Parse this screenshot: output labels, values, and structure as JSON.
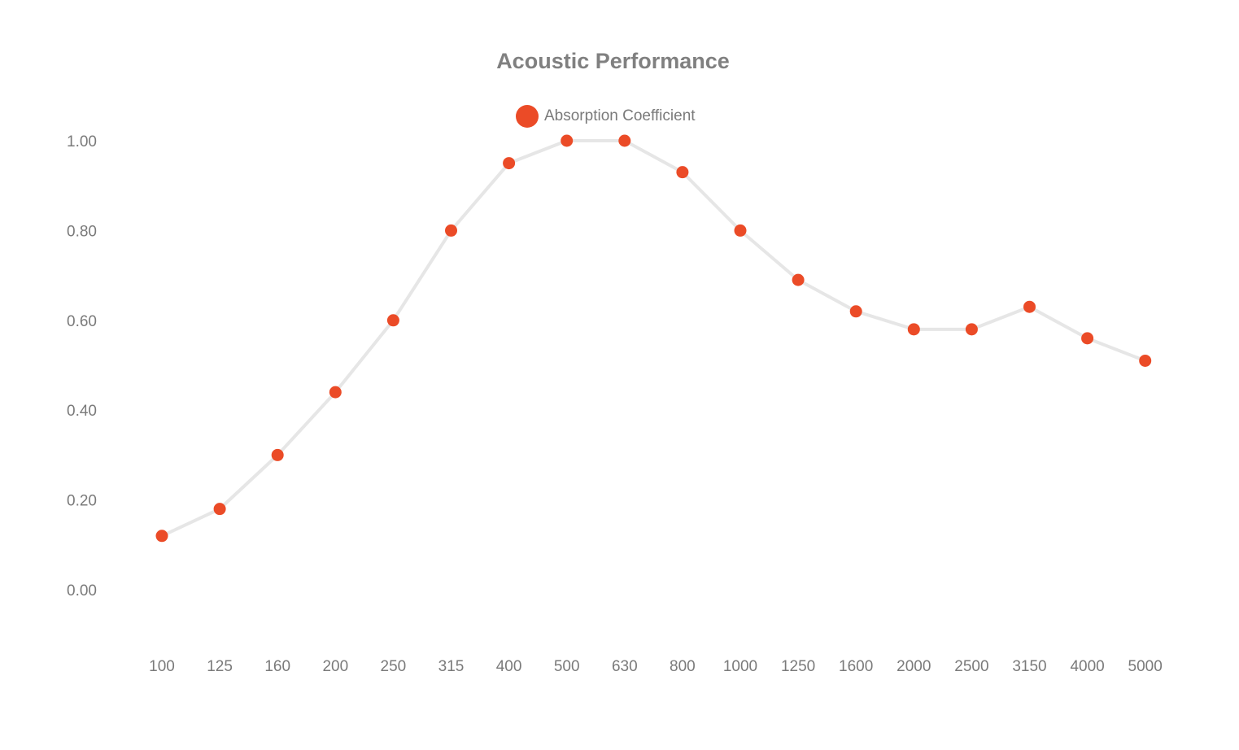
{
  "chart_data": {
    "type": "line",
    "title": "Acoustic Performance",
    "xlabel": "",
    "ylabel": "",
    "categories": [
      "100",
      "125",
      "160",
      "200",
      "250",
      "315",
      "400",
      "500",
      "630",
      "800",
      "1000",
      "1250",
      "1600",
      "2000",
      "2500",
      "3150",
      "4000",
      "5000"
    ],
    "series": [
      {
        "name": "Absorption Coefficient",
        "values": [
          0.12,
          0.18,
          0.3,
          0.44,
          0.6,
          0.8,
          0.95,
          1.0,
          1.0,
          0.93,
          0.8,
          0.69,
          0.62,
          0.58,
          0.58,
          0.63,
          0.56,
          0.51
        ],
        "point_color": "#eb4b27",
        "line_color": "#e6e6e6"
      }
    ],
    "y_ticks": [
      "0.00",
      "0.20",
      "0.40",
      "0.60",
      "0.80",
      "1.00"
    ],
    "ylim": [
      0,
      1
    ],
    "grid": false,
    "legend_position": "top-center"
  }
}
